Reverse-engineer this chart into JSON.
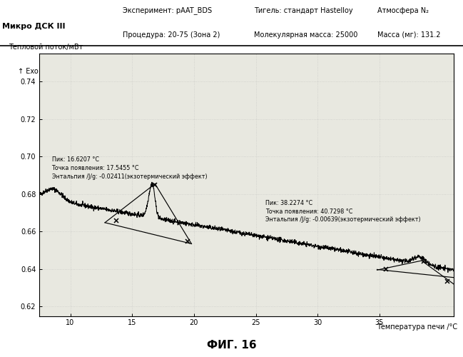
{
  "title_left": "Микро ДСК III",
  "header_line1": "Эксперимент: pAAT_BDS",
  "header_line2": "Процедура: 20-75 (Зона 2)",
  "header_col3_line1": "Тигель: стандарт Hastelloy",
  "header_col3_line2": "Молекулярная масса: 25000",
  "header_col4_line1": "Атмосфера N₂",
  "header_col4_line2": "Масса (мг): 131.2",
  "ylabel": "Тепловой поток/мВт",
  "ylabel2": "↑ Exo",
  "xlabel": "Температура печи /°C",
  "ylim": [
    0.615,
    0.755
  ],
  "xlim": [
    7.5,
    41
  ],
  "yticks": [
    0.62,
    0.64,
    0.66,
    0.68,
    0.7,
    0.72,
    0.74
  ],
  "xticks": [
    10,
    15,
    20,
    25,
    30,
    35
  ],
  "peak1_label": "Пик: 16.6207 °C\nТочка появления: 17.5455 °C\nЭнтальпия /J/g: -0.02411(экзотермический эффект)",
  "peak2_label": "Пик: 38.2274 °C\nТочка появления: 40.7298 °C\nЭнтальпия /J/g: -0.00639(экзотермический эффект)",
  "fig_label": "ФИГ. 16",
  "line_color": "#000000",
  "bg_color": "#e8e8e0"
}
